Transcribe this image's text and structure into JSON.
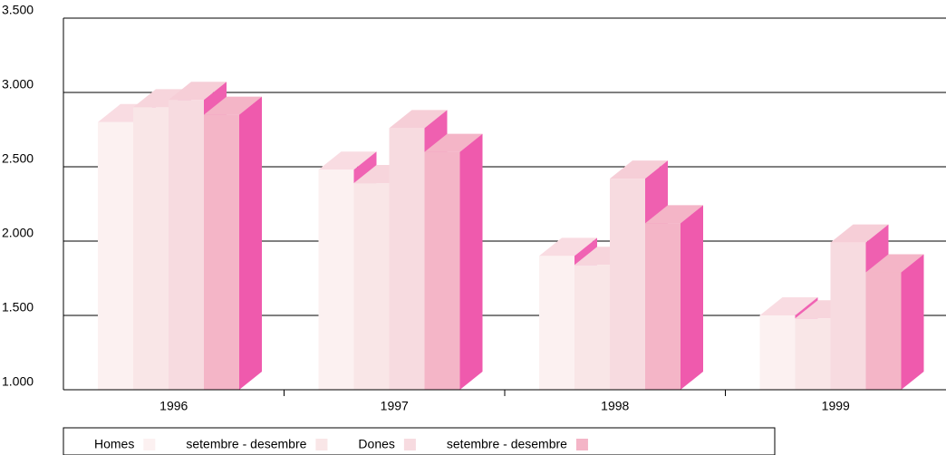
{
  "chart_data": {
    "type": "bar3d",
    "categories": [
      "1996",
      "1997",
      "1998",
      "1999"
    ],
    "series": [
      {
        "name": "Homes",
        "color": "#fcf1f1",
        "values": [
          2800,
          2480,
          1900,
          1500
        ]
      },
      {
        "name": "setembre - desembre",
        "color": "#f9e6e7",
        "values": [
          2900,
          2390,
          1840,
          1480
        ]
      },
      {
        "name": "Dones",
        "color": "#f7dbe0",
        "values": [
          2950,
          2760,
          2420,
          1990
        ]
      },
      {
        "name": "setembre - desembre",
        "color": "#f4b5c7",
        "values": [
          2850,
          2600,
          2120,
          1790
        ]
      }
    ],
    "ylim": [
      1000,
      3500
    ],
    "yticks": [
      {
        "value": 1000,
        "label": "1.000"
      },
      {
        "value": 1500,
        "label": "1.500"
      },
      {
        "value": 2000,
        "label": "2.000"
      },
      {
        "value": 2500,
        "label": "2.500"
      },
      {
        "value": 3000,
        "label": "3.000"
      },
      {
        "value": 3500,
        "label": "3.500"
      }
    ],
    "grid": true,
    "legend": "bottom"
  }
}
